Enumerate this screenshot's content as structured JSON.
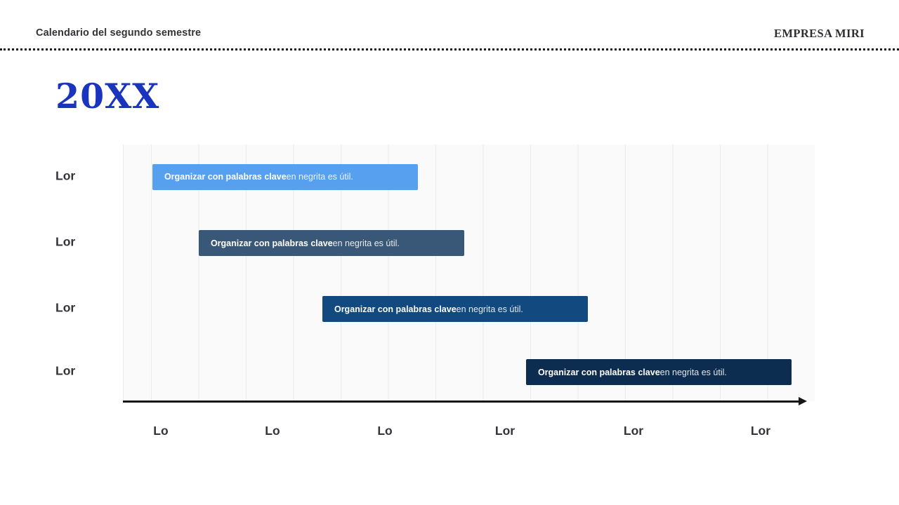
{
  "header": {
    "title": "Calendario del segundo semestre",
    "brand": "EMPRESA MIRI"
  },
  "year_title": "20XX",
  "colors": {
    "year_title": "#1b34be",
    "axis": "#161616",
    "gridline": "#ebebee",
    "plot_background": "#fafafa",
    "text_dark": "#33333a"
  },
  "chart_data": {
    "type": "gantt",
    "title": "Calendario del segundo semestre",
    "year": "20XX",
    "axis": {
      "orientation": "horizontal",
      "arrow": "right",
      "gridlines": true
    },
    "rows": [
      {
        "label": "Lor",
        "bar_text_bold": "Organizar con palabras clave",
        "bar_text_regular": " en negrita es útil.",
        "color": "#57a0ef",
        "start_pct": 4.26,
        "width_pct": 38.38,
        "center_pct": 12.7
      },
      {
        "label": "Lor",
        "bar_text_bold": "Organizar con palabras clave",
        "bar_text_regular": " en negrita es útil.",
        "color": "#395877",
        "start_pct": 10.96,
        "width_pct": 38.38,
        "center_pct": 38.4
      },
      {
        "label": "Lor",
        "bar_text_bold": "Organizar con palabras clave",
        "bar_text_regular": " en negrita es útil.",
        "color": "#12497e",
        "start_pct": 28.83,
        "width_pct": 38.38,
        "center_pct": 64.1
      },
      {
        "label": "Lor",
        "bar_text_bold": "Organizar con palabras clave",
        "bar_text_regular": " en negrita es útil.",
        "color": "#0d2d50",
        "start_pct": 58.27,
        "width_pct": 38.38,
        "center_pct": 88.7
      }
    ],
    "x_ticks": [
      {
        "label": "Lo",
        "pos_pct": 5.48
      },
      {
        "label": "Lo",
        "pos_pct": 21.62
      },
      {
        "label": "Lo",
        "pos_pct": 37.87
      },
      {
        "label": "Lor",
        "pos_pct": 55.23
      },
      {
        "label": "Lor",
        "pos_pct": 73.81
      },
      {
        "label": "Lor",
        "pos_pct": 92.18
      }
    ]
  }
}
